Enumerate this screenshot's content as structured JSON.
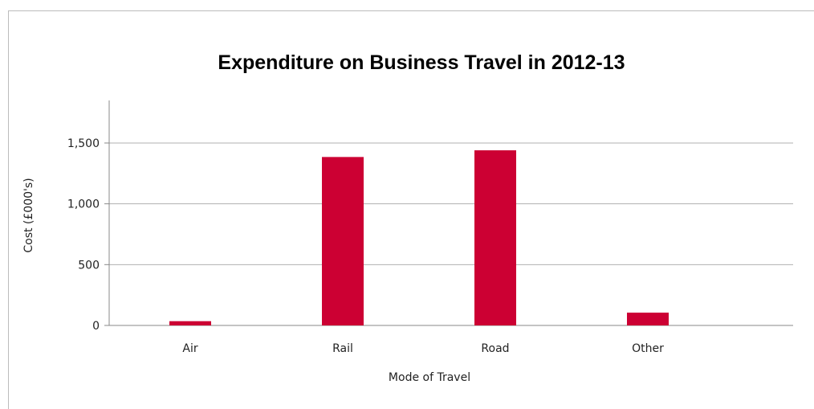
{
  "chart_data": {
    "type": "bar",
    "title": "Expenditure on Business Travel in 2012-13",
    "xlabel": "Mode of Travel",
    "ylabel": "Cost (£000's)",
    "categories": [
      "Air",
      "Rail",
      "Road",
      "Other"
    ],
    "values": [
      35,
      1385,
      1440,
      105
    ],
    "ylim": [
      0,
      1850
    ],
    "yticks": [
      0,
      500,
      1000,
      1500
    ],
    "ytick_labels": [
      "0",
      "500",
      "1,000",
      "1,500"
    ],
    "grid": true,
    "legend": "none",
    "bar_color": "#CC0033",
    "grid_color": "#b0b0b0"
  }
}
